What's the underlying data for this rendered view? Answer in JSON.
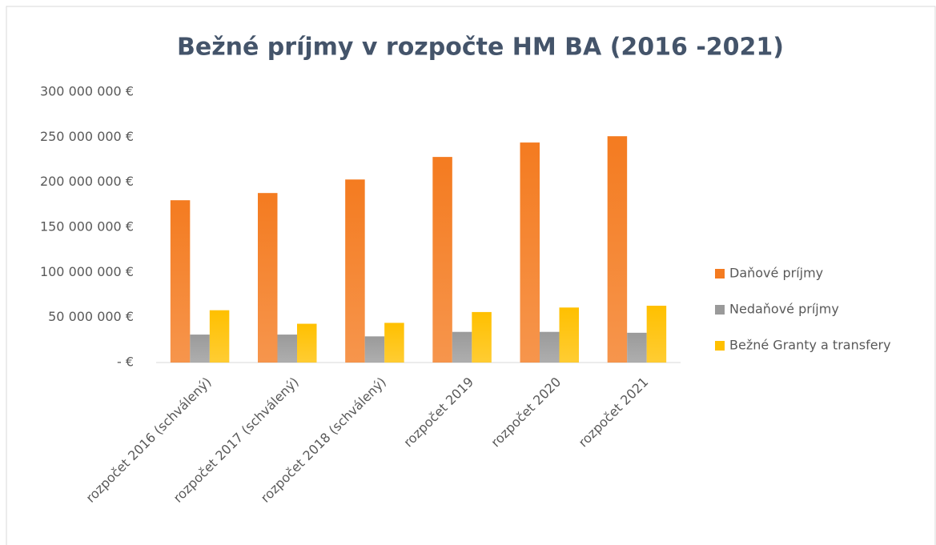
{
  "chart_data": {
    "type": "bar",
    "title": "Bežné príjmy v rozpočte HM BA (2016 -2021)",
    "categories": [
      "rozpočet 2016 (schválený)",
      "rozpočet 2017 (schválený)",
      "rozpočet 2018 (schválený)",
      "rozpočet 2019",
      "rozpočet 2020",
      "rozpočet 2021"
    ],
    "series": [
      {
        "name": "Daňové príjmy",
        "color": "#f47b20",
        "values": [
          180000000,
          188000000,
          203000000,
          228000000,
          244000000,
          251000000
        ]
      },
      {
        "name": "Nedaňové príjmy",
        "color": "#9a9a9a",
        "values": [
          31000000,
          31000000,
          29000000,
          34000000,
          34000000,
          33000000
        ]
      },
      {
        "name": "Bežné Granty a transfery",
        "color": "#ffc000",
        "values": [
          58000000,
          43000000,
          44000000,
          56000000,
          61000000,
          63000000
        ]
      }
    ],
    "ylim": [
      0,
      300000000
    ],
    "yticks": [
      {
        "value": 0,
        "label": "-   €"
      },
      {
        "value": 50000000,
        "label": "50 000 000 €"
      },
      {
        "value": 100000000,
        "label": "100 000 000 €"
      },
      {
        "value": 150000000,
        "label": "150 000 000 €"
      },
      {
        "value": 200000000,
        "label": "200 000 000 €"
      },
      {
        "value": 250000000,
        "label": "250 000 000 €"
      },
      {
        "value": 300000000,
        "label": "300 000 000 €"
      }
    ],
    "grid": false,
    "legend": "right"
  }
}
